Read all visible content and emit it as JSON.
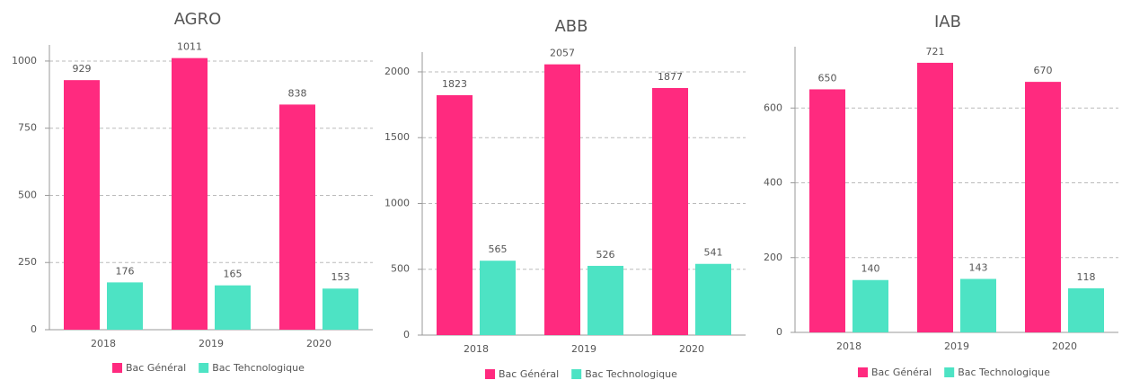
{
  "chart_data": [
    {
      "type": "bar",
      "title": "AGRO",
      "categories": [
        "2018",
        "2019",
        "2020"
      ],
      "series": [
        {
          "name": "Bac Général",
          "color": "#ff2a7f",
          "values": [
            929,
            1011,
            838
          ]
        },
        {
          "name": "Bac Tehcnologique",
          "color": "#4de3c4",
          "values": [
            176,
            165,
            153
          ]
        }
      ],
      "ylim": [
        0,
        1060
      ],
      "yticks": [
        0,
        250,
        500,
        750,
        1000
      ],
      "grid": true
    },
    {
      "type": "bar",
      "title": "ABB",
      "categories": [
        "2018",
        "2019",
        "2020"
      ],
      "series": [
        {
          "name": "Bac Général",
          "color": "#ff2a7f",
          "values": [
            1823,
            2057,
            1877
          ]
        },
        {
          "name": "Bac Technologique",
          "color": "#4de3c4",
          "values": [
            565,
            526,
            541
          ]
        }
      ],
      "ylim": [
        0,
        2150
      ],
      "yticks": [
        0,
        500,
        1000,
        1500,
        2000
      ],
      "grid": true
    },
    {
      "type": "bar",
      "title": "IAB",
      "categories": [
        "2018",
        "2019",
        "2020"
      ],
      "series": [
        {
          "name": "Bac Général",
          "color": "#ff2a7f",
          "values": [
            650,
            721,
            670
          ]
        },
        {
          "name": "Bac Technologique",
          "color": "#4de3c4",
          "values": [
            140,
            143,
            118
          ]
        }
      ],
      "ylim": [
        0,
        764
      ],
      "yticks": [
        0,
        200,
        400,
        600
      ],
      "grid": true
    }
  ]
}
